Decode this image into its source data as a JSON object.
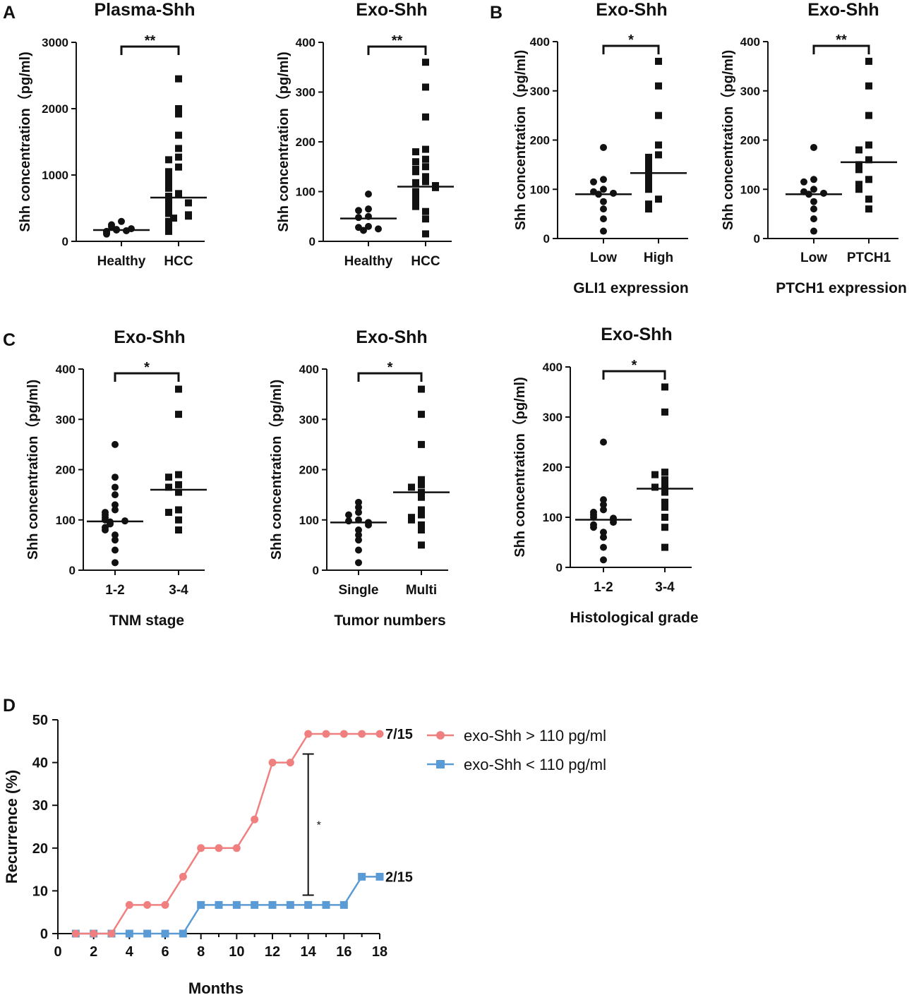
{
  "panels": {
    "A": "A",
    "B": "B",
    "C": "C",
    "D": "D"
  },
  "colors": {
    "ink": "#111111",
    "red": "#f08080",
    "blue": "#5b9bd5"
  },
  "chart_data": [
    {
      "id": "a1",
      "type": "scatter",
      "title": "Plasma-Shh",
      "ylabel": "Shh concentration（pg/ml)",
      "ylim": [
        0,
        3000
      ],
      "yticks": [
        "0",
        "1000",
        "2000",
        "3000"
      ],
      "xlabel": "",
      "categories": [
        "Healthy",
        "HCC"
      ],
      "significance": "**",
      "series": [
        {
          "name": "Healthy",
          "marker": "circle",
          "median": 170,
          "values": [
            300,
            250,
            220,
            190,
            180,
            170,
            160,
            150,
            130,
            110
          ]
        },
        {
          "name": "HCC",
          "marker": "square",
          "median": 660,
          "values": [
            2450,
            2000,
            1920,
            1600,
            1400,
            1270,
            1230,
            1120,
            1050,
            980,
            950,
            900,
            850,
            800,
            720,
            680,
            640,
            600,
            580,
            520,
            470,
            420,
            400,
            380,
            350,
            300,
            250,
            200,
            150
          ]
        }
      ]
    },
    {
      "id": "a2",
      "type": "scatter",
      "title": "Exo-Shh",
      "ylabel": "Shh concentration（pg/ml)",
      "ylim": [
        0,
        400
      ],
      "yticks": [
        "0",
        "100",
        "200",
        "300",
        "400"
      ],
      "xlabel": "",
      "categories": [
        "Healthy",
        "HCC"
      ],
      "significance": "**",
      "series": [
        {
          "name": "Healthy",
          "marker": "circle",
          "median": 46,
          "values": [
            95,
            65,
            62,
            50,
            48,
            30,
            28,
            25,
            22
          ]
        },
        {
          "name": "HCC",
          "marker": "square",
          "median": 110,
          "values": [
            360,
            310,
            250,
            185,
            180,
            165,
            160,
            150,
            145,
            140,
            130,
            120,
            118,
            112,
            110,
            108,
            100,
            95,
            90,
            85,
            80,
            75,
            70,
            60,
            45,
            15
          ]
        }
      ]
    },
    {
      "id": "b1",
      "type": "scatter",
      "title": "Exo-Shh",
      "ylabel": "Shh concentration（pg/ml)",
      "ylim": [
        0,
        400
      ],
      "yticks": [
        "0",
        "100",
        "200",
        "300",
        "400"
      ],
      "xlabel": "GLI1 expression",
      "categories": [
        "Low",
        "High"
      ],
      "significance": "*",
      "series": [
        {
          "name": "Low",
          "marker": "circle",
          "median": 90,
          "values": [
            185,
            120,
            115,
            100,
            95,
            92,
            90,
            75,
            60,
            40,
            15
          ]
        },
        {
          "name": "High",
          "marker": "square",
          "median": 133,
          "values": [
            360,
            310,
            250,
            190,
            170,
            165,
            155,
            145,
            140,
            130,
            120,
            115,
            105,
            100,
            80,
            70,
            60
          ]
        }
      ]
    },
    {
      "id": "b2",
      "type": "scatter",
      "title": "Exo-Shh",
      "ylabel": "Shh concentration（pg/ml)",
      "ylim": [
        0,
        400
      ],
      "yticks": [
        "0",
        "100",
        "200",
        "300",
        "400"
      ],
      "xlabel": "PTCH1 expression",
      "categories": [
        "Low",
        "PTCH1"
      ],
      "significance": "**",
      "series": [
        {
          "name": "Low",
          "marker": "circle",
          "median": 90,
          "values": [
            185,
            120,
            115,
            100,
            95,
            92,
            90,
            75,
            60,
            40,
            15
          ]
        },
        {
          "name": "PTCH1",
          "marker": "square",
          "median": 155,
          "values": [
            360,
            310,
            250,
            190,
            180,
            160,
            150,
            140,
            120,
            110,
            100,
            80,
            60
          ]
        }
      ]
    },
    {
      "id": "c1",
      "type": "scatter",
      "title": "Exo-Shh",
      "ylabel": "Shh concentration（pg/ml)",
      "ylim": [
        0,
        400
      ],
      "yticks": [
        "0",
        "100",
        "200",
        "300",
        "400"
      ],
      "xlabel": "TNM stage",
      "categories": [
        "1-2",
        "3-4"
      ],
      "significance": "*",
      "series": [
        {
          "name": "1-2",
          "marker": "circle",
          "median": 97,
          "values": [
            250,
            185,
            165,
            150,
            130,
            120,
            115,
            110,
            105,
            100,
            98,
            96,
            92,
            85,
            80,
            70,
            60,
            40,
            15
          ]
        },
        {
          "name": "3-4",
          "marker": "square",
          "median": 160,
          "values": [
            360,
            310,
            190,
            185,
            170,
            165,
            155,
            120,
            115,
            100,
            80
          ]
        }
      ]
    },
    {
      "id": "c2",
      "type": "scatter",
      "title": "Exo-Shh",
      "ylabel": "Shh concentration（pg/ml)",
      "ylim": [
        0,
        400
      ],
      "yticks": [
        "0",
        "100",
        "200",
        "300",
        "400"
      ],
      "xlabel": "Tumor numbers",
      "categories": [
        "Single",
        "Multi"
      ],
      "significance": "*",
      "series": [
        {
          "name": "Single",
          "marker": "circle",
          "median": 95,
          "values": [
            135,
            125,
            115,
            110,
            100,
            98,
            95,
            90,
            80,
            70,
            60,
            40,
            15
          ]
        },
        {
          "name": "Multi",
          "marker": "square",
          "median": 155,
          "values": [
            360,
            310,
            250,
            180,
            170,
            165,
            155,
            145,
            120,
            110,
            105,
            100,
            90,
            80,
            50
          ]
        }
      ]
    },
    {
      "id": "c3",
      "type": "scatter",
      "title": "Exo-Shh",
      "ylabel": "Shh concentration（pg/ml)",
      "ylim": [
        0,
        400
      ],
      "yticks": [
        "0",
        "100",
        "200",
        "300",
        "400"
      ],
      "xlabel": "Histological  grade",
      "categories": [
        "1-2",
        "3-4"
      ],
      "significance": "*",
      "series": [
        {
          "name": "1-2",
          "marker": "circle",
          "median": 95,
          "values": [
            250,
            135,
            125,
            115,
            110,
            105,
            100,
            98,
            95,
            90,
            85,
            80,
            70,
            60,
            40,
            15
          ]
        },
        {
          "name": "3-4",
          "marker": "square",
          "median": 157,
          "values": [
            360,
            310,
            190,
            185,
            175,
            165,
            160,
            150,
            130,
            120,
            100,
            80,
            40
          ]
        }
      ]
    },
    {
      "id": "d",
      "type": "line",
      "title": "",
      "xlabel": "Months",
      "ylabel": "Recurrence (%)",
      "xlim": [
        0,
        18
      ],
      "ylim": [
        0,
        50
      ],
      "xticks": [
        "0",
        "2",
        "4",
        "6",
        "8",
        "10",
        "12",
        "14",
        "16",
        "18"
      ],
      "yticks": [
        "0",
        "10",
        "20",
        "30",
        "40",
        "50"
      ],
      "x": [
        1,
        2,
        3,
        4,
        5,
        6,
        7,
        8,
        9,
        10,
        11,
        12,
        13,
        14,
        15,
        16,
        17,
        18
      ],
      "significance": "*",
      "sig_range": [
        9,
        42
      ],
      "sig_x": 14,
      "series": [
        {
          "name": "exo-Shh > 110 pg/ml",
          "marker": "circle",
          "color": "#f08080",
          "end_label": "7/15",
          "values": [
            0,
            0,
            0,
            6.7,
            6.7,
            6.7,
            13.3,
            20,
            20,
            20,
            26.7,
            40,
            40,
            46.7,
            46.7,
            46.7,
            46.7,
            46.7
          ]
        },
        {
          "name": "exo-Shh < 110 pg/ml",
          "marker": "square",
          "color": "#5b9bd5",
          "end_label": "2/15",
          "values": [
            0,
            0,
            0,
            0,
            0,
            0,
            0,
            6.7,
            6.7,
            6.7,
            6.7,
            6.7,
            6.7,
            6.7,
            6.7,
            6.7,
            13.3,
            13.3
          ]
        }
      ]
    }
  ]
}
